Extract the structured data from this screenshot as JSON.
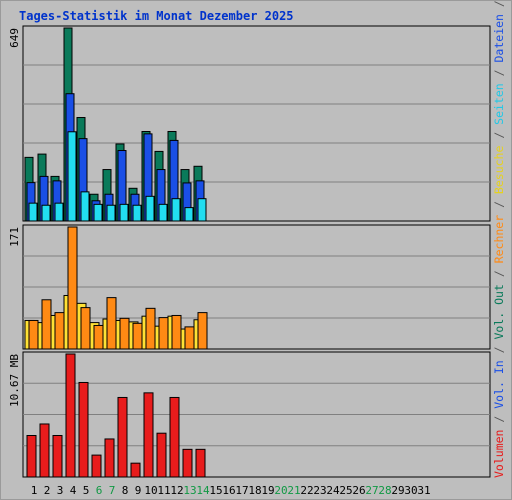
{
  "chart_data": {
    "type": "bar",
    "title": "Tages-Statistik im Monat Dezember 2025",
    "categories": [
      "1",
      "2",
      "3",
      "4",
      "5",
      "6",
      "7",
      "8",
      "9",
      "10",
      "11",
      "12",
      "13",
      "14",
      "15",
      "16",
      "17",
      "18",
      "19",
      "20",
      "21",
      "22",
      "23",
      "24",
      "25",
      "26",
      "27",
      "28",
      "29",
      "30",
      "31"
    ],
    "weekend_days": [
      "6",
      "7",
      "13",
      "14",
      "20",
      "21",
      "27",
      "28"
    ],
    "panels": [
      {
        "max_label": "649",
        "ylim": [
          0,
          649
        ],
        "grid": true,
        "series": [
          {
            "name": "Anfragen",
            "color": "#0a7a5a",
            "values": [
              214,
              225,
              150,
              649,
              348,
              90,
              173,
              259,
              110,
              301,
              234,
              301,
              173,
              184,
              null,
              null,
              null,
              null,
              null,
              null,
              null,
              null,
              null,
              null,
              null,
              null,
              null,
              null,
              null,
              null,
              null
            ]
          },
          {
            "name": "Dateien",
            "color": "#1a4fe6",
            "values": [
              129,
              150,
              135,
              428,
              277,
              68,
              90,
              237,
              90,
              293,
              173,
              271,
              128,
              135,
              null,
              null,
              null,
              null,
              null,
              null,
              null,
              null,
              null,
              null,
              null,
              null,
              null,
              null,
              null,
              null,
              null
            ]
          },
          {
            "name": "Seiten",
            "color": "#22ddf0",
            "values": [
              60,
              53,
              60,
              300,
              98,
              56,
              53,
              56,
              53,
              83,
              56,
              75,
              45,
              75,
              null,
              null,
              null,
              null,
              null,
              null,
              null,
              null,
              null,
              null,
              null,
              null,
              null,
              null,
              null,
              null,
              null
            ]
          }
        ]
      },
      {
        "max_label": "171",
        "ylim": [
          0,
          171
        ],
        "grid": true,
        "series": [
          {
            "name": "Besuche",
            "color": "#ffe135",
            "values": [
              40,
              37,
              47,
              75,
              64,
              37,
              42,
              40,
              38,
              46,
              32,
              46,
              28,
              41,
              null,
              null,
              null,
              null,
              null,
              null,
              null,
              null,
              null,
              null,
              null,
              null,
              null,
              null,
              null,
              null,
              null
            ]
          },
          {
            "name": "Rechner",
            "color": "#ff8a14",
            "values": [
              40,
              69,
              51,
              171,
              58,
              33,
              72,
              43,
              36,
              57,
              44,
              47,
              31,
              51,
              null,
              null,
              null,
              null,
              null,
              null,
              null,
              null,
              null,
              null,
              null,
              null,
              null,
              null,
              null,
              null,
              null
            ]
          }
        ]
      },
      {
        "max_label": "10.67 MB",
        "ylim": [
          0,
          10.67
        ],
        "grid": true,
        "series": [
          {
            "name": "Volumen",
            "color": "#e81c1c",
            "values": [
              3.6,
              4.6,
              3.6,
              10.67,
              8.2,
              1.9,
              3.3,
              6.9,
              1.2,
              7.3,
              3.8,
              6.9,
              2.4,
              2.4,
              null,
              null,
              null,
              null,
              null,
              null,
              null,
              null,
              null,
              null,
              null,
              null,
              null,
              null,
              null,
              null,
              null
            ]
          }
        ]
      }
    ],
    "right_legend": [
      {
        "text": "Volumen",
        "color": "#e81c1c"
      },
      {
        "text": "/",
        "color": "#555555"
      },
      {
        "text": "Vol. In",
        "color": "#1a4fe6"
      },
      {
        "text": "/",
        "color": "#555555"
      },
      {
        "text": "Vol. Out",
        "color": "#0a7a5a"
      },
      {
        "text": "/",
        "color": "#555555"
      },
      {
        "text": "Rechner",
        "color": "#ff8a14"
      },
      {
        "text": "/",
        "color": "#555555"
      },
      {
        "text": "Besuche",
        "color": "#e6d21e"
      },
      {
        "text": "/",
        "color": "#555555"
      },
      {
        "text": "Seiten",
        "color": "#22c8e6"
      },
      {
        "text": "/",
        "color": "#555555"
      },
      {
        "text": "Dateien",
        "color": "#1a4fe6"
      },
      {
        "text": "/",
        "color": "#555555"
      },
      {
        "text": "Anfragen",
        "color": "#0a7a5a"
      }
    ],
    "colors": {
      "title": "#0033cc",
      "weekday_label": "#000000",
      "weekend_label": "#119944",
      "panel_bg": "#bebebe",
      "grid": "#808080"
    }
  }
}
